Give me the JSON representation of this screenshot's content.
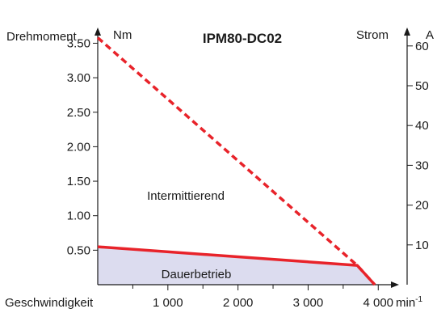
{
  "chart_data": {
    "type": "line",
    "title": "IPM80-DC02",
    "left_axis": {
      "label": "Drehmoment",
      "unit": "Nm",
      "range": [
        0,
        3.75
      ],
      "ticks": [
        "0.50",
        "1.00",
        "1.50",
        "2.00",
        "2.50",
        "3.00",
        "3.50"
      ]
    },
    "right_axis": {
      "label": "Strom",
      "unit": "A",
      "range": [
        0,
        64.3
      ],
      "ticks": [
        "10",
        "20",
        "30",
        "40",
        "50",
        "60"
      ]
    },
    "x_axis": {
      "label": "Geschwindigkeit",
      "unit": "min-1",
      "unit_base": "min",
      "unit_exp": "-1",
      "range": [
        0,
        4400
      ],
      "ticks": [
        "1 000",
        "2 000",
        "3 000",
        "4 000"
      ]
    },
    "series": [
      {
        "name": "Intermittierend",
        "style": "dashed",
        "color": "#e8232a",
        "x": [
          0,
          3700,
          3950
        ],
        "y": [
          3.58,
          0.28,
          0
        ]
      },
      {
        "name": "Dauerbetrieb",
        "style": "solid",
        "fill": "#dcdcef",
        "color": "#e8232a",
        "x": [
          0,
          3700,
          3950
        ],
        "y": [
          0.55,
          0.28,
          0
        ]
      }
    ],
    "grid": false,
    "legend": "none"
  }
}
